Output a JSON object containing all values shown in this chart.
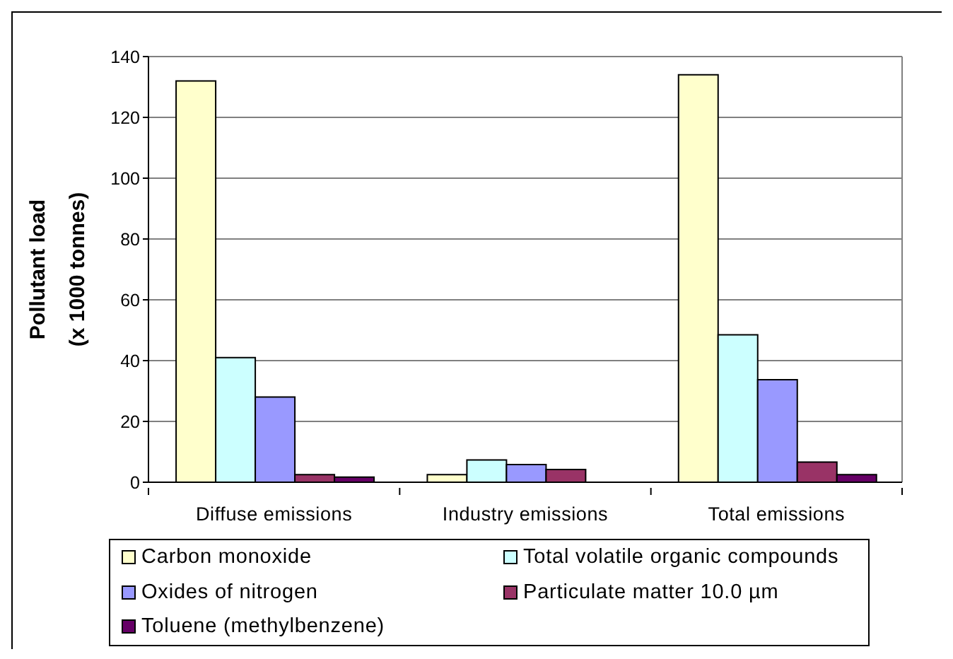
{
  "chart_data": {
    "type": "bar",
    "categories": [
      "Diffuse emissions",
      "Industry emissions",
      "Total emissions"
    ],
    "ylabel": "Pollutant load\n(x 1000 tonnes)",
    "series": [
      {
        "name": "Carbon monoxide",
        "color": "#ffffcc",
        "values": [
          132,
          2.5,
          134
        ]
      },
      {
        "name": "Total volatile organic compounds",
        "color": "#ccffff",
        "values": [
          41,
          7.3,
          48.5
        ]
      },
      {
        "name": "Oxides of nitrogen",
        "color": "#9999ff",
        "values": [
          28,
          5.8,
          33.7
        ]
      },
      {
        "name": "Particulate matter 10.0 µm",
        "color": "#993366",
        "values": [
          2.5,
          4.2,
          6.6
        ]
      },
      {
        "name": "Toluene (methylbenzene)",
        "color": "#660066",
        "values": [
          1.7,
          null,
          2.5
        ]
      }
    ],
    "ylim": [
      0,
      140
    ],
    "yticks": [
      0,
      20,
      40,
      60,
      80,
      100,
      120,
      140
    ],
    "grid": "y",
    "legend": "bottom"
  }
}
